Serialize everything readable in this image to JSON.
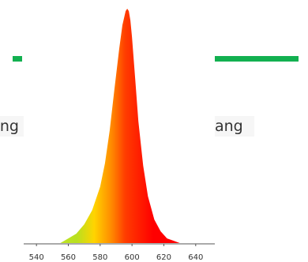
{
  "overlay": {
    "left_text": "ng",
    "right_text": "ang"
  },
  "chart_data": {
    "type": "area",
    "title": "",
    "xlabel": "",
    "ylabel": "",
    "x_ticks": [
      540,
      560,
      580,
      600,
      620,
      640
    ],
    "xlim": [
      530,
      652
    ],
    "ylim": [
      0,
      1
    ],
    "grid": false,
    "series": [
      {
        "x": [
          555,
          560,
          565,
          570,
          575,
          580,
          583,
          586,
          589,
          592,
          594,
          596,
          597,
          598,
          599,
          600,
          602,
          604,
          607,
          610,
          614,
          618,
          622,
          626,
          630
        ],
        "values": [
          0.0,
          0.02,
          0.04,
          0.08,
          0.14,
          0.24,
          0.34,
          0.48,
          0.66,
          0.83,
          0.93,
          0.99,
          1.0,
          0.99,
          0.95,
          0.88,
          0.7,
          0.52,
          0.33,
          0.2,
          0.1,
          0.05,
          0.02,
          0.01,
          0.0
        ]
      }
    ],
    "colors": {
      "axis": "#555555",
      "gradient_stops": [
        "#b9e020",
        "#ffd400",
        "#ff8a00",
        "#ff3c00",
        "#ff0000"
      ],
      "green_accent": "#12b050"
    }
  }
}
